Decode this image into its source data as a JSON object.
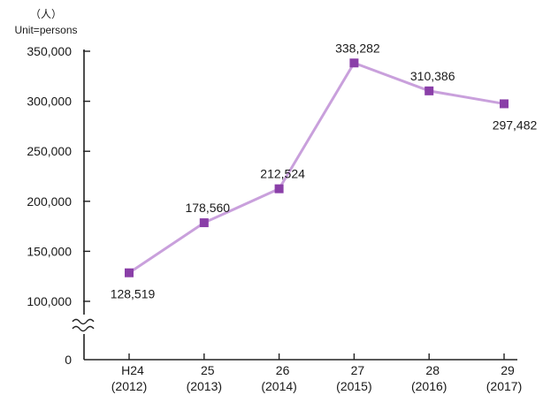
{
  "chart_data": {
    "type": "line",
    "unit_label_cjk": "（人）",
    "unit_label": "Unit=persons",
    "y_zero_label": "0",
    "yticks": [
      100000,
      150000,
      200000,
      250000,
      300000,
      350000
    ],
    "ytick_labels": [
      "100,000",
      "150,000",
      "200,000",
      "250,000",
      "300,000",
      "350,000"
    ],
    "ylim": [
      100000,
      350000
    ],
    "axis_break": true,
    "categories": [
      {
        "top": "H24",
        "bottom": "(2012)"
      },
      {
        "top": "25",
        "bottom": "(2013)"
      },
      {
        "top": "26",
        "bottom": "(2014)"
      },
      {
        "top": "27",
        "bottom": "(2015)"
      },
      {
        "top": "28",
        "bottom": "(2016)"
      },
      {
        "top": "29",
        "bottom": "(2017)"
      }
    ],
    "series": [
      {
        "values": [
          128519,
          178560,
          212524,
          338282,
          310386,
          297482
        ],
        "labels": [
          "128,519",
          "178,560",
          "212,524",
          "338,282",
          "310,386",
          "297,482"
        ],
        "line_color": "#c9a0dc",
        "marker_color": "#8a3fa8"
      }
    ],
    "grid": false,
    "legend": "none"
  }
}
